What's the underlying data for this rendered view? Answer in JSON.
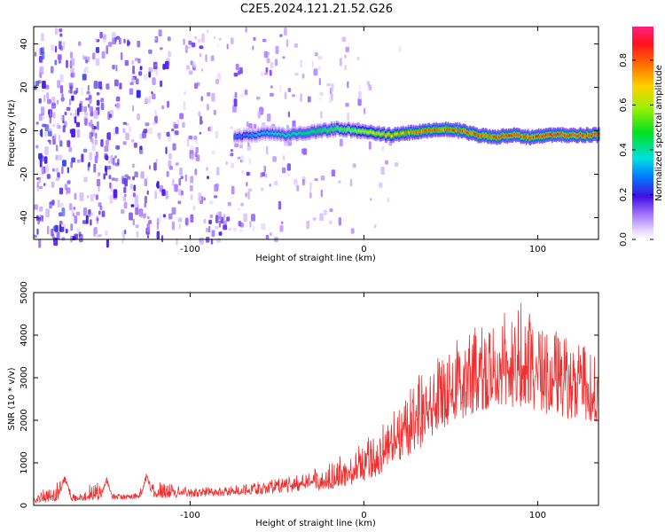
{
  "title": "C2E5.2024.121.21.52.G26",
  "chart_data": [
    {
      "type": "heatmap",
      "xlabel": "Height of straight line (km)",
      "ylabel": "Frequency (Hz)",
      "xlim": [
        -190,
        135
      ],
      "ylim": [
        -50,
        48
      ],
      "x_ticks": [
        -100,
        0,
        100
      ],
      "x_tick_labels": [
        "-100",
        "0",
        "100"
      ],
      "y_ticks": [
        -40,
        -20,
        0,
        20,
        40
      ],
      "y_tick_labels": [
        "-40",
        "-20",
        "0",
        "20",
        "40"
      ],
      "colorbar": {
        "label": "Normalized spectral amplitude",
        "range": [
          0,
          0.95
        ],
        "ticks": [
          0.0,
          0.2,
          0.4,
          0.6,
          0.8
        ],
        "tick_labels": [
          "0.0",
          "0.2",
          "0.4",
          "0.6",
          "0.8"
        ]
      },
      "signal_ridge": {
        "description_free": true,
        "x": [
          -75,
          -65,
          -55,
          -45,
          -35,
          -25,
          -15,
          -5,
          5,
          15,
          25,
          35,
          45,
          55,
          65,
          75,
          85,
          95,
          105,
          115,
          125,
          135
        ],
        "frequency": [
          -3,
          -2,
          -1,
          -2,
          -1,
          0,
          1,
          0,
          -1,
          -2,
          -1,
          0,
          1,
          0,
          -2,
          -3,
          -2,
          -3,
          -2,
          -2,
          -2,
          -2
        ],
        "peak_amplitude": [
          0.3,
          0.35,
          0.4,
          0.45,
          0.5,
          0.55,
          0.6,
          0.65,
          0.75,
          0.8,
          0.85,
          0.9,
          0.9,
          0.92,
          0.9,
          0.92,
          0.93,
          0.93,
          0.93,
          0.93,
          0.93,
          0.9
        ]
      },
      "noise_region_x": [
        -190,
        40
      ]
    },
    {
      "type": "line",
      "xlabel": "Height of straight line (km)",
      "ylabel": "SNR (10 * v/v)",
      "xlim": [
        -190,
        135
      ],
      "ylim": [
        0,
        5000
      ],
      "x_ticks": [
        -100,
        0,
        100
      ],
      "x_tick_labels": [
        "-100",
        "0",
        "100"
      ],
      "y_ticks": [
        0,
        1000,
        2000,
        3000,
        4000,
        5000
      ],
      "y_tick_labels": [
        "0",
        "1000",
        "2000",
        "3000",
        "4000",
        "5000"
      ],
      "color": "#f03030",
      "envelope": {
        "x": [
          -190,
          -175,
          -165,
          -155,
          -145,
          -135,
          -120,
          -100,
          -80,
          -60,
          -40,
          -20,
          -10,
          0,
          10,
          20,
          30,
          40,
          50,
          60,
          70,
          80,
          90,
          100,
          110,
          120,
          135
        ],
        "low": [
          60,
          80,
          100,
          120,
          140,
          150,
          170,
          190,
          220,
          260,
          320,
          380,
          450,
          550,
          700,
          900,
          1200,
          1600,
          1900,
          2100,
          2200,
          2300,
          2300,
          2200,
          2100,
          2000,
          1900
        ],
        "mean": [
          150,
          250,
          180,
          230,
          230,
          200,
          280,
          300,
          330,
          380,
          460,
          600,
          750,
          900,
          1200,
          1600,
          2000,
          2400,
          2700,
          2900,
          3000,
          3100,
          3100,
          3000,
          2950,
          2900,
          2850
        ],
        "high": [
          220,
          650,
          260,
          580,
          300,
          250,
          600,
          420,
          450,
          560,
          700,
          1000,
          1300,
          1500,
          1900,
          2500,
          3000,
          3400,
          3900,
          4100,
          4300,
          4600,
          4800,
          4300,
          4100,
          3900,
          3800
        ]
      },
      "bumps": [
        {
          "x": -172,
          "peak": 700
        },
        {
          "x": -148,
          "peak": 650
        },
        {
          "x": -125,
          "peak": 750
        }
      ]
    }
  ]
}
